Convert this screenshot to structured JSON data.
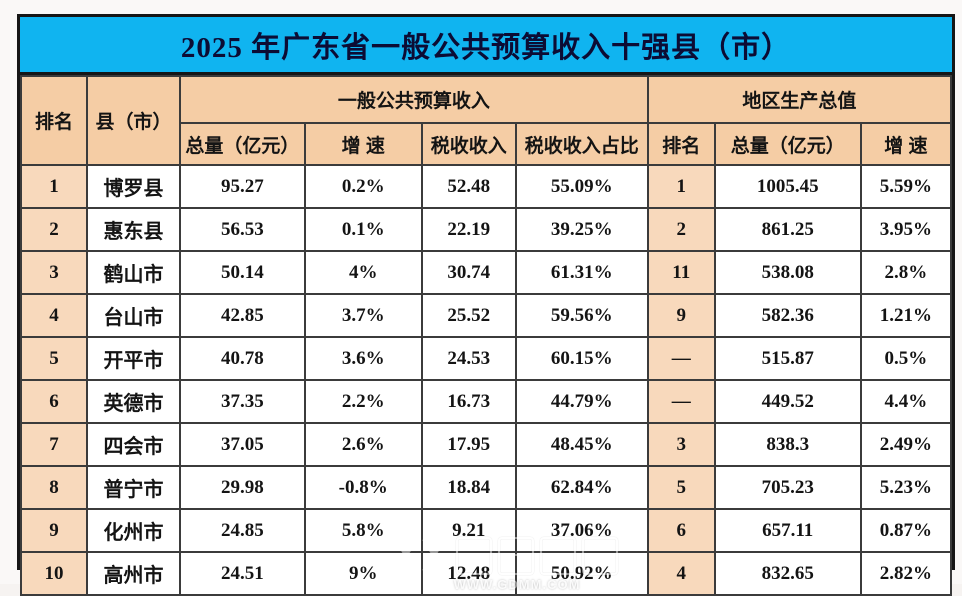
{
  "title": "2025 年广东省一般公共预算收入十强县（市）",
  "colors": {
    "banner_bg": "#10b4f0",
    "title_text": "#0c0c34",
    "header_bg": "#f5cda5",
    "rank_cell_bg": "#f8d9bc",
    "grid_line": "#3b3b3b",
    "outer_border": "#161616"
  },
  "table": {
    "group_headers": {
      "revenue": "一般公共预算收入",
      "gdp": "地区生产总值"
    },
    "headers": {
      "rank": "排名",
      "county": "县（市）",
      "total": "总量（亿元）",
      "growth": "增 速",
      "tax": "税收收入",
      "tax_share": "税收收入占比",
      "gdp_rank": "排名",
      "gdp_total": "总量（亿元）",
      "gdp_growth": "增 速"
    },
    "rows": [
      {
        "rank": "1",
        "county": "博罗县",
        "total": "95.27",
        "growth": "0.2%",
        "tax": "52.48",
        "tax_share": "55.09%",
        "gdp_rank": "1",
        "gdp_total": "1005.45",
        "gdp_growth": "5.59%"
      },
      {
        "rank": "2",
        "county": "惠东县",
        "total": "56.53",
        "growth": "0.1%",
        "tax": "22.19",
        "tax_share": "39.25%",
        "gdp_rank": "2",
        "gdp_total": "861.25",
        "gdp_growth": "3.95%"
      },
      {
        "rank": "3",
        "county": "鹤山市",
        "total": "50.14",
        "growth": "4%",
        "tax": "30.74",
        "tax_share": "61.31%",
        "gdp_rank": "11",
        "gdp_total": "538.08",
        "gdp_growth": "2.8%"
      },
      {
        "rank": "4",
        "county": "台山市",
        "total": "42.85",
        "growth": "3.7%",
        "tax": "25.52",
        "tax_share": "59.56%",
        "gdp_rank": "9",
        "gdp_total": "582.36",
        "gdp_growth": "1.21%"
      },
      {
        "rank": "5",
        "county": "开平市",
        "total": "40.78",
        "growth": "3.6%",
        "tax": "24.53",
        "tax_share": "60.15%",
        "gdp_rank": "—",
        "gdp_total": "515.87",
        "gdp_growth": "0.5%"
      },
      {
        "rank": "6",
        "county": "英德市",
        "total": "37.35",
        "growth": "2.2%",
        "tax": "16.73",
        "tax_share": "44.79%",
        "gdp_rank": "—",
        "gdp_total": "449.52",
        "gdp_growth": "4.4%"
      },
      {
        "rank": "7",
        "county": "四会市",
        "total": "37.05",
        "growth": "2.6%",
        "tax": "17.95",
        "tax_share": "48.45%",
        "gdp_rank": "3",
        "gdp_total": "838.3",
        "gdp_growth": "2.49%"
      },
      {
        "rank": "8",
        "county": "普宁市",
        "total": "29.98",
        "growth": "-0.8%",
        "tax": "18.84",
        "tax_share": "62.84%",
        "gdp_rank": "5",
        "gdp_total": "705.23",
        "gdp_growth": "5.23%"
      },
      {
        "rank": "9",
        "county": "化州市",
        "total": "24.85",
        "growth": "5.8%",
        "tax": "9.21",
        "tax_share": "37.06%",
        "gdp_rank": "6",
        "gdp_total": "657.11",
        "gdp_growth": "0.87%"
      },
      {
        "rank": "10",
        "county": "高州市",
        "total": "24.51",
        "growth": "9%",
        "tax": "12.48",
        "tax_share": "50.92%",
        "gdp_rank": "4",
        "gdp_total": "832.65",
        "gdp_growth": "2.82%"
      }
    ]
  },
  "watermark": {
    "site": "WWW.GDMM.COM"
  }
}
